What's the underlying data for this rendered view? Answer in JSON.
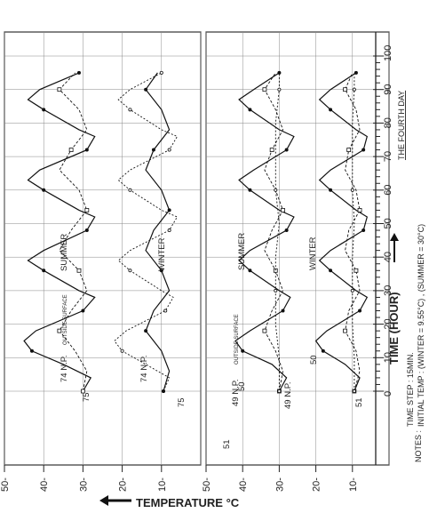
{
  "chart_data": {
    "type": "line",
    "orientation": "rotated-90",
    "xlabel": "TIME (HOUR)",
    "ylabel": "TEMPERATURE °C",
    "xlim": [
      0,
      100
    ],
    "ylim": [
      0,
      50
    ],
    "x_ticks": [
      "0",
      "10",
      "20",
      "30",
      "40",
      "50",
      "60",
      "70",
      "80",
      "90",
      "100"
    ],
    "y_ticks": [
      "50",
      "40",
      "30",
      "20",
      "10"
    ],
    "day_label": "THE FOURTH DAY",
    "notes_prefix": "NOTES :",
    "note1": "TIME STEP : 15MIN.",
    "note2": "INITIAL TEMP : (WINTER = 9.55°C) , (SUMMER = 30°C)",
    "grid": true,
    "panels": [
      {
        "name": "top",
        "labels": {
          "summer": "SUMMER",
          "winter": "WINTER",
          "np_outside": "74 N.P.",
          "outside_surface": "OUTSIDE SURFACE",
          "np_winter": "74 N.P.",
          "n75a": "75",
          "n75b": "75"
        },
        "series": [
          {
            "x": [
              0,
              4,
              8,
              12,
              15,
              18,
              24,
              28,
              30,
              36,
              39,
              42,
              48,
              52,
              54,
              60,
              63,
              66,
              72,
              76,
              78,
              84,
              87,
              90,
              95
            ],
            "y": [
              30,
              28,
              35,
              43,
              45,
              42,
              30,
              27,
              31,
              40,
              44,
              40,
              29,
              27,
              31,
              40,
              44,
              41,
              29,
              27,
              31,
              40,
              44,
              41,
              31
            ]
          },
          {
            "x": [
              0,
              6,
              12,
              18,
              24,
              30,
              36,
              42,
              48,
              54,
              60,
              66,
              72,
              78,
              84,
              90,
              95
            ],
            "y": [
              30,
              29,
              32,
              36,
              33,
              29,
              31,
              36,
              33,
              29,
              31,
              36,
              33,
              29,
              31,
              36,
              32
            ]
          },
          {
            "x": [
              0,
              4,
              8,
              12,
              15,
              18,
              24,
              28,
              30,
              36,
              39,
              42,
              48,
              52,
              54,
              60,
              63,
              66,
              72,
              76,
              78,
              84,
              87,
              90,
              95
            ],
            "y": [
              9.5,
              8,
              14,
              20,
              22,
              19,
              9,
              7,
              10,
              18,
              21,
              18,
              8,
              6,
              10,
              18,
              21,
              18,
              8,
              6,
              10,
              18,
              21,
              18,
              10
            ]
          },
          {
            "x": [
              0,
              6,
              12,
              18,
              24,
              30,
              36,
              42,
              48,
              54,
              60,
              66,
              72,
              78,
              84,
              90,
              95
            ],
            "y": [
              9.5,
              8,
              10,
              14,
              12,
              8,
              10,
              14,
              12,
              8,
              10,
              14,
              12,
              8,
              10,
              14,
              11
            ]
          }
        ]
      },
      {
        "name": "bottom",
        "labels": {
          "summer": "SUMMER",
          "winter": "WINTER",
          "np_outside": "49 N.P.",
          "outside_surface": "OUTSIDE SURFACE",
          "np_winter": "49 N.P.",
          "n50a": "50",
          "n50b": "50",
          "n51a": "51",
          "n51b": "51"
        },
        "series": [
          {
            "x": [
              0,
              4,
              8,
              12,
              15,
              18,
              24,
              28,
              30,
              36,
              39,
              42,
              48,
              52,
              54,
              60,
              63,
              66,
              72,
              76,
              78,
              84,
              87,
              90,
              95
            ],
            "y": [
              30,
              28,
              32,
              40,
              42,
              38,
              29,
              27,
              30,
              38,
              41,
              38,
              28,
              26,
              30,
              38,
              41,
              37,
              28,
              26,
              30,
              38,
              41,
              37,
              30
            ]
          },
          {
            "x": [
              0,
              6,
              12,
              18,
              24,
              30,
              36,
              42,
              48,
              54,
              60,
              66,
              72,
              78,
              84,
              90,
              95
            ],
            "y": [
              30,
              29,
              31,
              34,
              32,
              29,
              31,
              34,
              32,
              29,
              31,
              34,
              32,
              29,
              31,
              34,
              31
            ]
          },
          {
            "x": [
              0,
              10,
              20,
              30,
              40,
              50,
              60,
              70,
              80,
              90,
              95
            ],
            "y": [
              30,
              30,
              31,
              31,
              31,
              30,
              31,
              31,
              31,
              30,
              30
            ]
          },
          {
            "x": [
              0,
              4,
              8,
              12,
              15,
              18,
              24,
              28,
              30,
              36,
              39,
              42,
              48,
              52,
              54,
              60,
              63,
              66,
              72,
              76,
              78,
              84,
              87,
              90,
              95
            ],
            "y": [
              9.5,
              8,
              12,
              18,
              20,
              17,
              8,
              6,
              9,
              16,
              19,
              16,
              7,
              6,
              9,
              16,
              19,
              16,
              7,
              6,
              9,
              16,
              19,
              16,
              9
            ]
          },
          {
            "x": [
              0,
              6,
              12,
              18,
              24,
              30,
              36,
              42,
              48,
              54,
              60,
              66,
              72,
              78,
              84,
              90,
              95
            ],
            "y": [
              9.5,
              8,
              9,
              12,
              11,
              8,
              9,
              12,
              11,
              8,
              9,
              12,
              11,
              8,
              9,
              12,
              10
            ]
          },
          {
            "x": [
              0,
              10,
              20,
              30,
              40,
              50,
              60,
              70,
              80,
              90,
              95
            ],
            "y": [
              9.5,
              9.5,
              10,
              10,
              10,
              9.5,
              10,
              10,
              10,
              9.5,
              9.5
            ]
          }
        ]
      }
    ]
  }
}
